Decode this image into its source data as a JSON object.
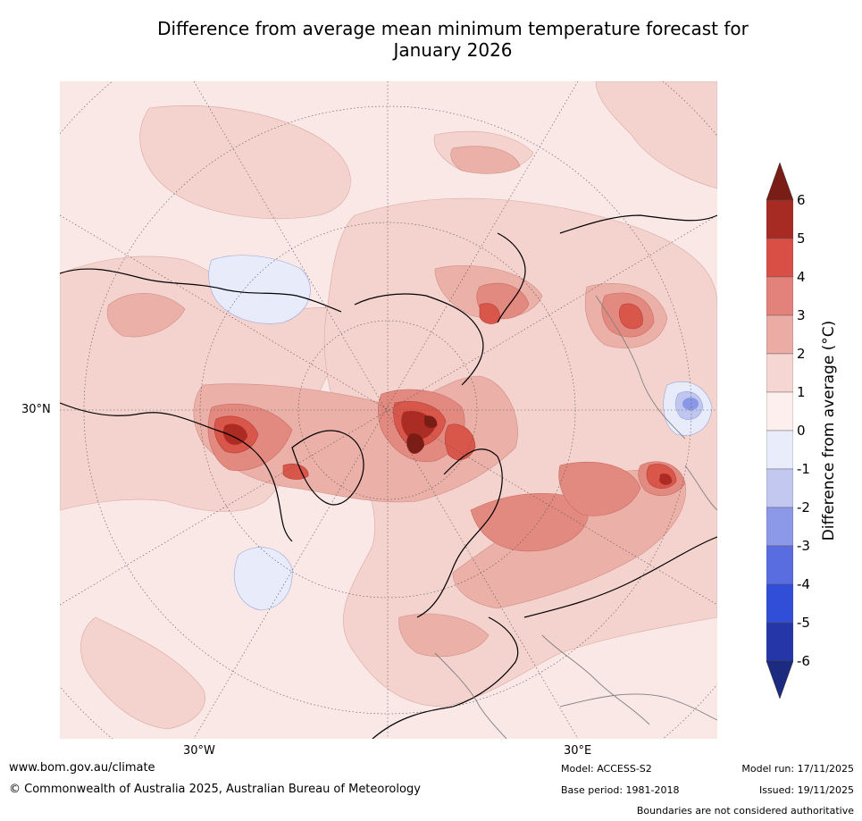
{
  "title_line1": "Difference from average mean minimum temperature forecast for",
  "title_line2": "January 2026",
  "map": {
    "lat_labels": [
      "30°N"
    ],
    "lon_labels": [
      "30°W",
      "30°E"
    ],
    "colors": {
      "ocean_bg": "#f9e8e5",
      "pos_0_1": "#fbeae7",
      "pos_1_2": "#f4d3cf",
      "pos_2_3": "#ebb0a8",
      "pos_3_4": "#e28a80",
      "pos_4_5": "#d9564a",
      "pos_5_6": "#ac2c24",
      "pos_6_plus": "#7a1d17",
      "neg_0_1": "#e8ecfa",
      "neg_1_2": "#bfc6f0",
      "neg_2_3": "#8a96e6",
      "coast": "#000000",
      "border": "#808080",
      "grid": "#555555"
    }
  },
  "colorbar": {
    "label": "Difference from average (°C)",
    "ticks": [
      "6",
      "5",
      "4",
      "3",
      "2",
      "1",
      "0",
      "-1",
      "-2",
      "-3",
      "-4",
      "-5",
      "-6"
    ],
    "colors": [
      "#a72a23",
      "#d94e45",
      "#e3827a",
      "#ecaca6",
      "#f5d6d3",
      "#fcefed",
      "#e8ecfb",
      "#c3c8f0",
      "#8c98e8",
      "#5a6de0",
      "#304ed8",
      "#2436a8"
    ],
    "top_arrow": "#7a1d17",
    "bottom_arrow": "#1c2a80"
  },
  "footer": {
    "website": "www.bom.gov.au/climate",
    "copyright": "© Commonwealth of Australia 2025, Australian Bureau of Meteorology",
    "model": "Model: ACCESS-S2",
    "base_period": "Base period: 1981-2018",
    "model_run": "Model run: 17/11/2025",
    "issued": "Issued: 19/11/2025",
    "disclaimer": "Boundaries are not considered authoritative"
  }
}
